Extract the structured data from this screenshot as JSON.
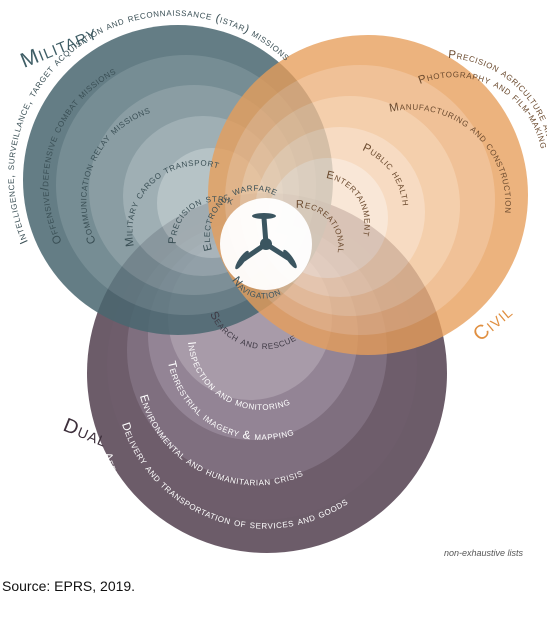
{
  "diagram": {
    "sets": {
      "military": {
        "label": "Military",
        "color": "#3f5e66",
        "items": [
          "Intelligence, surveillance, target acquisition and reconnaissance (istar) missions",
          "Offensive/defensive combat missions",
          "Communication relay missions",
          "Military cargo transport",
          "Precision strikes",
          "Electronic warfare"
        ]
      },
      "civil": {
        "label": "Civil",
        "color": "#e8a464",
        "items": [
          "Precision agriculture and farming",
          "Photography and film-making",
          "Manufacturing and construction",
          "Public health",
          "Entertainment",
          "Recreational"
        ]
      },
      "dual": {
        "label": "Dual",
        "color": "#594555",
        "items": [
          "Aerial, land and maritime surveillance and management",
          "Delivery and transportation of services and goods",
          "Environmental and humanitarian crisis",
          "Terrestrial imagery & mapping",
          "Inspection and monitoring",
          "Search and rescue",
          "Navigation"
        ]
      }
    },
    "center_icon": "drone-icon",
    "note": "non-exhaustive lists"
  },
  "source": "Source: EPRS, 2019."
}
